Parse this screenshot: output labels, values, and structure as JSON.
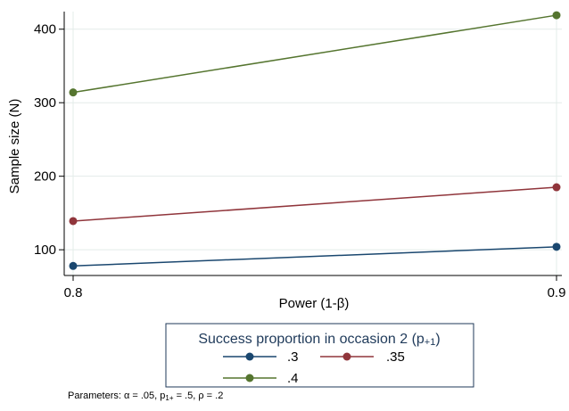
{
  "chart_data": {
    "type": "line",
    "xlabel": "Power (1-β)",
    "ylabel": "Sample size (N)",
    "x": [
      0.8,
      0.9
    ],
    "x_tick_labels": [
      "0.8",
      "0.9"
    ],
    "y_ticks": [
      100,
      200,
      300,
      400
    ],
    "xlim": [
      0.8,
      0.9
    ],
    "ylim": [
      65,
      430
    ],
    "grid": true,
    "legend": {
      "title": "Success proportion in occasion 2 (p",
      "title_subscript": "+1",
      "title_suffix": ")",
      "placement": "bottom"
    },
    "series": [
      {
        "name": ".3",
        "values": [
          78,
          104
        ],
        "color": "#1a476f"
      },
      {
        "name": ".35",
        "values": [
          139,
          185
        ],
        "color": "#90353b"
      },
      {
        "name": ".4",
        "values": [
          314,
          419
        ],
        "color": "#55752f"
      }
    ],
    "note": {
      "prefix": "Parameters: α = .05, p",
      "sub": "1+",
      "suffix": " = .5, ρ = .2"
    }
  }
}
